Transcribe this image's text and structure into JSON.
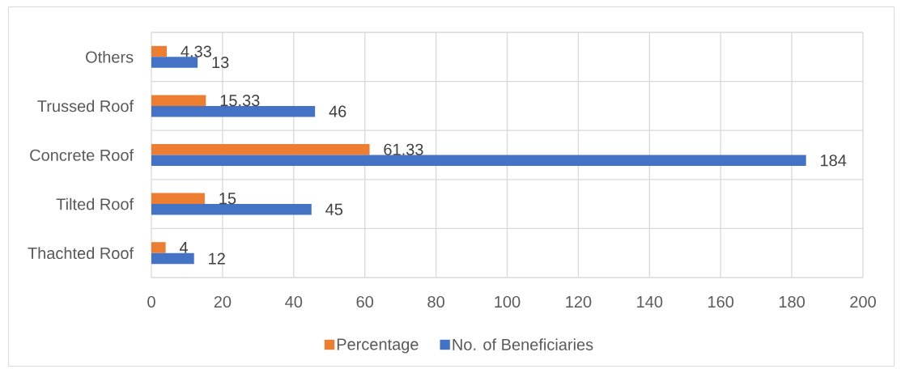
{
  "chart_data": {
    "type": "bar",
    "orientation": "horizontal",
    "categories": [
      "Others",
      "Trussed Roof",
      "Concrete Roof",
      "Tilted Roof",
      "Thachted Roof"
    ],
    "series": [
      {
        "name": "Percentage",
        "color": "#ed7d31",
        "values": [
          4.33,
          15.33,
          61.33,
          15,
          4
        ]
      },
      {
        "name": "No. of Beneficiaries",
        "color": "#4472c4",
        "values": [
          13,
          46,
          184,
          45,
          12
        ]
      }
    ],
    "xlim": [
      0,
      200
    ],
    "xticks": [
      0,
      20,
      40,
      60,
      80,
      100,
      120,
      140,
      160,
      180,
      200
    ],
    "grid": true,
    "legend": "bottom",
    "data_labels": true
  }
}
